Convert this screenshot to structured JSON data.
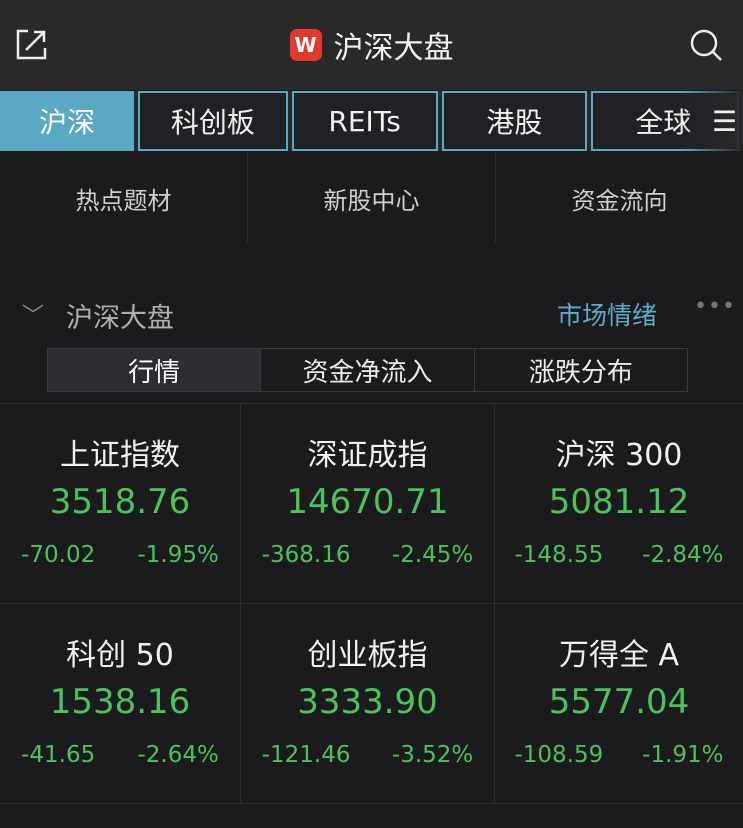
{
  "header": {
    "title": "沪深大盘",
    "logo": "W",
    "left_icon": "external-link-icon",
    "right_icon": "search-icon"
  },
  "tabs": [
    {
      "label": "沪深",
      "active": true
    },
    {
      "label": "科创板"
    },
    {
      "label": "REITs"
    },
    {
      "label": "港股"
    },
    {
      "label": "全球"
    }
  ],
  "tabs_menu_icon": "☰",
  "quick": [
    "热点题材",
    "新股中心",
    "资金流向"
  ],
  "section": {
    "title": "沪深大盘",
    "link": "市场情绪",
    "more": "•••"
  },
  "segments": [
    {
      "label": "行情",
      "active": true
    },
    {
      "label": "资金净流入"
    },
    {
      "label": "涨跌分布"
    }
  ],
  "colors": {
    "down": "#4cc25a",
    "accent": "#5aa8c4",
    "logo": "#e03a2c"
  },
  "indices": [
    {
      "name": "上证指数",
      "price": "3518.76",
      "change": "-70.02",
      "pct": "-1.95%"
    },
    {
      "name": "深证成指",
      "price": "14670.71",
      "change": "-368.16",
      "pct": "-2.45%"
    },
    {
      "name": "沪深 300",
      "price": "5081.12",
      "change": "-148.55",
      "pct": "-2.84%"
    },
    {
      "name": "科创 50",
      "price": "1538.16",
      "change": "-41.65",
      "pct": "-2.64%"
    },
    {
      "name": "创业板指",
      "price": "3333.90",
      "change": "-121.46",
      "pct": "-3.52%"
    },
    {
      "name": "万得全 A",
      "price": "5577.04",
      "change": "-108.59",
      "pct": "-1.91%"
    }
  ]
}
